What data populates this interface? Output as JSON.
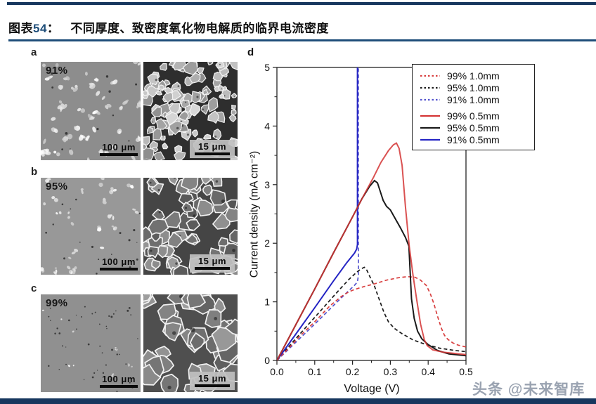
{
  "header": {
    "tag": "图表",
    "number": "54",
    "colon": "：",
    "title": "不同厚度、致密度氧化物电解质的临界电流密度"
  },
  "panels": [
    {
      "label": "a",
      "density": "91%",
      "scale_left": "100 μm",
      "scale_right": "15 μm"
    },
    {
      "label": "b",
      "density": "95%",
      "scale_left": "100 μm",
      "scale_right": "15 μm"
    },
    {
      "label": "c",
      "density": "99%",
      "scale_left": "100 μm",
      "scale_right": "15 μm"
    }
  ],
  "chart_data": {
    "type": "line",
    "panel_label": "d",
    "xlabel": "Voltage (V)",
    "ylabel": "Current density (mA cm⁻²)",
    "xlim": [
      0.0,
      0.5
    ],
    "ylim": [
      0,
      5
    ],
    "xtick_labels": [
      "0.0",
      "0.1",
      "0.2",
      "0.3",
      "0.4",
      "0.5"
    ],
    "ytick_labels": [
      "0",
      "1",
      "2",
      "3",
      "4",
      "5"
    ],
    "grid": false,
    "legend_position": "top-right",
    "series": [
      {
        "name": "99% 1.0mm",
        "color": "#d84040",
        "style": "dashed",
        "points": [
          [
            0,
            0
          ],
          [
            0.03,
            0.2
          ],
          [
            0.06,
            0.41
          ],
          [
            0.1,
            0.66
          ],
          [
            0.14,
            0.93
          ],
          [
            0.17,
            1.09
          ],
          [
            0.19,
            1.17
          ],
          [
            0.205,
            1.21
          ],
          [
            0.23,
            1.26
          ],
          [
            0.26,
            1.31
          ],
          [
            0.29,
            1.37
          ],
          [
            0.32,
            1.41
          ],
          [
            0.345,
            1.43
          ],
          [
            0.365,
            1.42
          ],
          [
            0.38,
            1.37
          ],
          [
            0.395,
            1.28
          ],
          [
            0.405,
            1.15
          ],
          [
            0.415,
            0.97
          ],
          [
            0.425,
            0.75
          ],
          [
            0.435,
            0.55
          ],
          [
            0.443,
            0.43
          ],
          [
            0.452,
            0.36
          ],
          [
            0.465,
            0.3
          ],
          [
            0.48,
            0.26
          ],
          [
            0.5,
            0.23
          ]
        ]
      },
      {
        "name": "95% 1.0mm",
        "color": "#1a1a1a",
        "style": "dashed",
        "points": [
          [
            0,
            0
          ],
          [
            0.04,
            0.3
          ],
          [
            0.08,
            0.59
          ],
          [
            0.12,
            0.88
          ],
          [
            0.16,
            1.17
          ],
          [
            0.19,
            1.38
          ],
          [
            0.21,
            1.5
          ],
          [
            0.222,
            1.56
          ],
          [
            0.231,
            1.59
          ],
          [
            0.238,
            1.54
          ],
          [
            0.248,
            1.4
          ],
          [
            0.258,
            1.27
          ],
          [
            0.27,
            1.05
          ],
          [
            0.283,
            0.82
          ],
          [
            0.295,
            0.66
          ],
          [
            0.31,
            0.55
          ],
          [
            0.33,
            0.46
          ],
          [
            0.36,
            0.35
          ],
          [
            0.39,
            0.28
          ],
          [
            0.43,
            0.21
          ],
          [
            0.47,
            0.17
          ],
          [
            0.5,
            0.15
          ]
        ]
      },
      {
        "name": "91% 1.0mm",
        "color": "#5353cd",
        "style": "dashed",
        "points": [
          [
            0,
            0
          ],
          [
            0.05,
            0.31
          ],
          [
            0.1,
            0.62
          ],
          [
            0.15,
            0.94
          ],
          [
            0.185,
            1.16
          ],
          [
            0.205,
            1.28
          ],
          [
            0.213,
            1.34
          ],
          [
            0.2155,
            1.45
          ],
          [
            0.2155,
            5.05
          ]
        ]
      },
      {
        "name": "99% 0.5mm",
        "color": "#d43535",
        "style": "solid",
        "points": [
          [
            0,
            0
          ],
          [
            0.05,
            0.61
          ],
          [
            0.1,
            1.22
          ],
          [
            0.15,
            1.84
          ],
          [
            0.2,
            2.45
          ],
          [
            0.23,
            2.82
          ],
          [
            0.255,
            3.12
          ],
          [
            0.275,
            3.38
          ],
          [
            0.295,
            3.58
          ],
          [
            0.308,
            3.68
          ],
          [
            0.316,
            3.71
          ],
          [
            0.323,
            3.62
          ],
          [
            0.331,
            3.33
          ],
          [
            0.34,
            2.62
          ],
          [
            0.35,
            1.95
          ],
          [
            0.36,
            1.45
          ],
          [
            0.37,
            1.02
          ],
          [
            0.38,
            0.62
          ],
          [
            0.39,
            0.35
          ],
          [
            0.398,
            0.25
          ],
          [
            0.412,
            0.18
          ],
          [
            0.44,
            0.14
          ],
          [
            0.47,
            0.12
          ],
          [
            0.5,
            0.1
          ]
        ]
      },
      {
        "name": "95% 0.5mm",
        "color": "#1a1a1a",
        "style": "solid",
        "points": [
          [
            0,
            0
          ],
          [
            0.05,
            0.61
          ],
          [
            0.1,
            1.22
          ],
          [
            0.15,
            1.84
          ],
          [
            0.2,
            2.45
          ],
          [
            0.225,
            2.76
          ],
          [
            0.245,
            2.97
          ],
          [
            0.258,
            3.07
          ],
          [
            0.266,
            3.03
          ],
          [
            0.273,
            2.89
          ],
          [
            0.281,
            2.73
          ],
          [
            0.29,
            2.63
          ],
          [
            0.3,
            2.57
          ],
          [
            0.313,
            2.42
          ],
          [
            0.327,
            2.26
          ],
          [
            0.34,
            2.1
          ],
          [
            0.349,
            1.95
          ],
          [
            0.352,
            1.55
          ],
          [
            0.356,
            1.05
          ],
          [
            0.363,
            0.72
          ],
          [
            0.372,
            0.5
          ],
          [
            0.383,
            0.37
          ],
          [
            0.4,
            0.27
          ],
          [
            0.425,
            0.17
          ],
          [
            0.455,
            0.11
          ],
          [
            0.5,
            0.08
          ]
        ]
      },
      {
        "name": "91% 0.5mm",
        "color": "#2525c4",
        "style": "solid",
        "points": [
          [
            0,
            0
          ],
          [
            0.05,
            0.45
          ],
          [
            0.1,
            0.9
          ],
          [
            0.15,
            1.36
          ],
          [
            0.185,
            1.67
          ],
          [
            0.205,
            1.83
          ],
          [
            0.211,
            1.9
          ],
          [
            0.213,
            1.98
          ],
          [
            0.213,
            5.05
          ]
        ]
      }
    ]
  },
  "watermark": "头条 @未来智库",
  "colors": {
    "navy_bar": "#17375E",
    "title_rule": "#1F4E79",
    "axis": "#222222"
  }
}
